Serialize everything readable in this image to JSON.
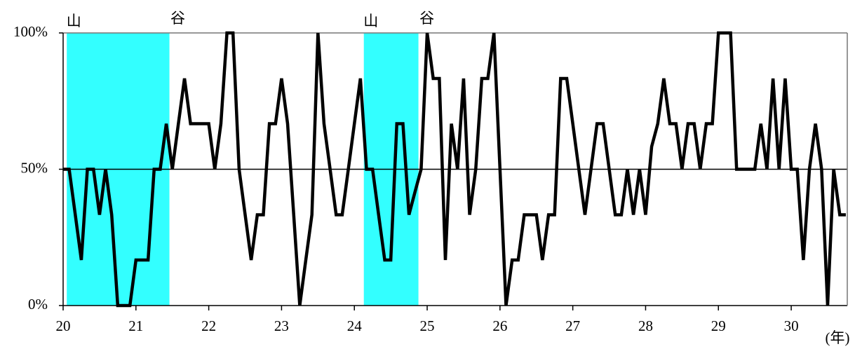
{
  "chart_data": {
    "type": "line",
    "x_unit_label": "(年)",
    "x": [
      20,
      20.083,
      20.167,
      20.25,
      20.333,
      20.417,
      20.5,
      20.583,
      20.667,
      20.75,
      20.833,
      20.917,
      21,
      21.083,
      21.167,
      21.25,
      21.333,
      21.417,
      21.5,
      21.583,
      21.667,
      21.75,
      21.833,
      21.917,
      22,
      22.083,
      22.167,
      22.25,
      22.333,
      22.417,
      22.5,
      22.583,
      22.667,
      22.75,
      22.833,
      22.917,
      23,
      23.083,
      23.167,
      23.25,
      23.333,
      23.417,
      23.5,
      23.583,
      23.667,
      23.75,
      23.833,
      23.917,
      24,
      24.083,
      24.167,
      24.25,
      24.333,
      24.417,
      24.5,
      24.583,
      24.667,
      24.75,
      24.833,
      24.917,
      25,
      25.083,
      25.167,
      25.25,
      25.333,
      25.417,
      25.5,
      25.583,
      25.667,
      25.75,
      25.833,
      25.917,
      26,
      26.083,
      26.167,
      26.25,
      26.333,
      26.417,
      26.5,
      26.583,
      26.667,
      26.75,
      26.833,
      26.917,
      27,
      27.083,
      27.167,
      27.25,
      27.333,
      27.417,
      27.5,
      27.583,
      27.667,
      27.75,
      27.833,
      27.917,
      28,
      28.083,
      28.167,
      28.25,
      28.333,
      28.417,
      28.5,
      28.583,
      28.667,
      28.75,
      28.833,
      28.917,
      29,
      29.083,
      29.167,
      29.25,
      29.333,
      29.417,
      29.5,
      29.583,
      29.667,
      29.75,
      29.833,
      29.917,
      30,
      30.083,
      30.167,
      30.25,
      30.333,
      30.417,
      30.5,
      30.583,
      30.667,
      30.75
    ],
    "series": [
      {
        "color": "#000000",
        "values": [
          50,
          50,
          33.3,
          16.7,
          50,
          50,
          33.3,
          50,
          33.3,
          0,
          0,
          0,
          16.7,
          16.7,
          16.7,
          50,
          50,
          66.7,
          50,
          66.7,
          83.3,
          66.7,
          66.7,
          66.7,
          66.7,
          50,
          66.7,
          100,
          100,
          50,
          33.3,
          16.7,
          33.3,
          33.3,
          66.7,
          66.7,
          83.3,
          66.7,
          33.3,
          0,
          16.7,
          33.3,
          100,
          66.7,
          50,
          33.3,
          33.3,
          50,
          66.7,
          83.3,
          50,
          50,
          33.3,
          16.7,
          16.7,
          66.7,
          66.7,
          33.3,
          41.7,
          50,
          100,
          83.3,
          83.3,
          16.7,
          66.7,
          50,
          83.3,
          33.3,
          50,
          83.3,
          83.3,
          100,
          50,
          0,
          16.7,
          16.7,
          33.3,
          33.3,
          33.3,
          16.7,
          33.3,
          33.3,
          83.3,
          83.3,
          66.7,
          50,
          33.3,
          50,
          66.7,
          66.7,
          50,
          33.3,
          33.3,
          50,
          33.3,
          50,
          33.3,
          58.3,
          66.7,
          83.3,
          66.7,
          66.7,
          50,
          66.7,
          66.7,
          50,
          66.7,
          66.7,
          100,
          100,
          100,
          50,
          50,
          50,
          50,
          66.7,
          50,
          83.3,
          50,
          83.3,
          50,
          50,
          16.7,
          50,
          66.7,
          50,
          0,
          50,
          33.3,
          33.3
        ]
      }
    ],
    "shaded_periods": [
      {
        "start": 20.05,
        "end": 21.46,
        "start_label": "山",
        "end_label": "谷",
        "color": "#33ffff"
      },
      {
        "start": 24.13,
        "end": 24.88,
        "start_label": "山",
        "end_label": "谷",
        "color": "#33ffff"
      }
    ],
    "xlim": [
      20,
      30.77
    ],
    "xticks": [
      20,
      21,
      22,
      23,
      24,
      25,
      26,
      27,
      28,
      29,
      30
    ],
    "ylim": [
      0,
      100
    ],
    "yticks": [
      {
        "value": 0,
        "label": "0%"
      },
      {
        "value": 50,
        "label": "50%"
      },
      {
        "value": 100,
        "label": "100%"
      }
    ],
    "grid": true
  }
}
